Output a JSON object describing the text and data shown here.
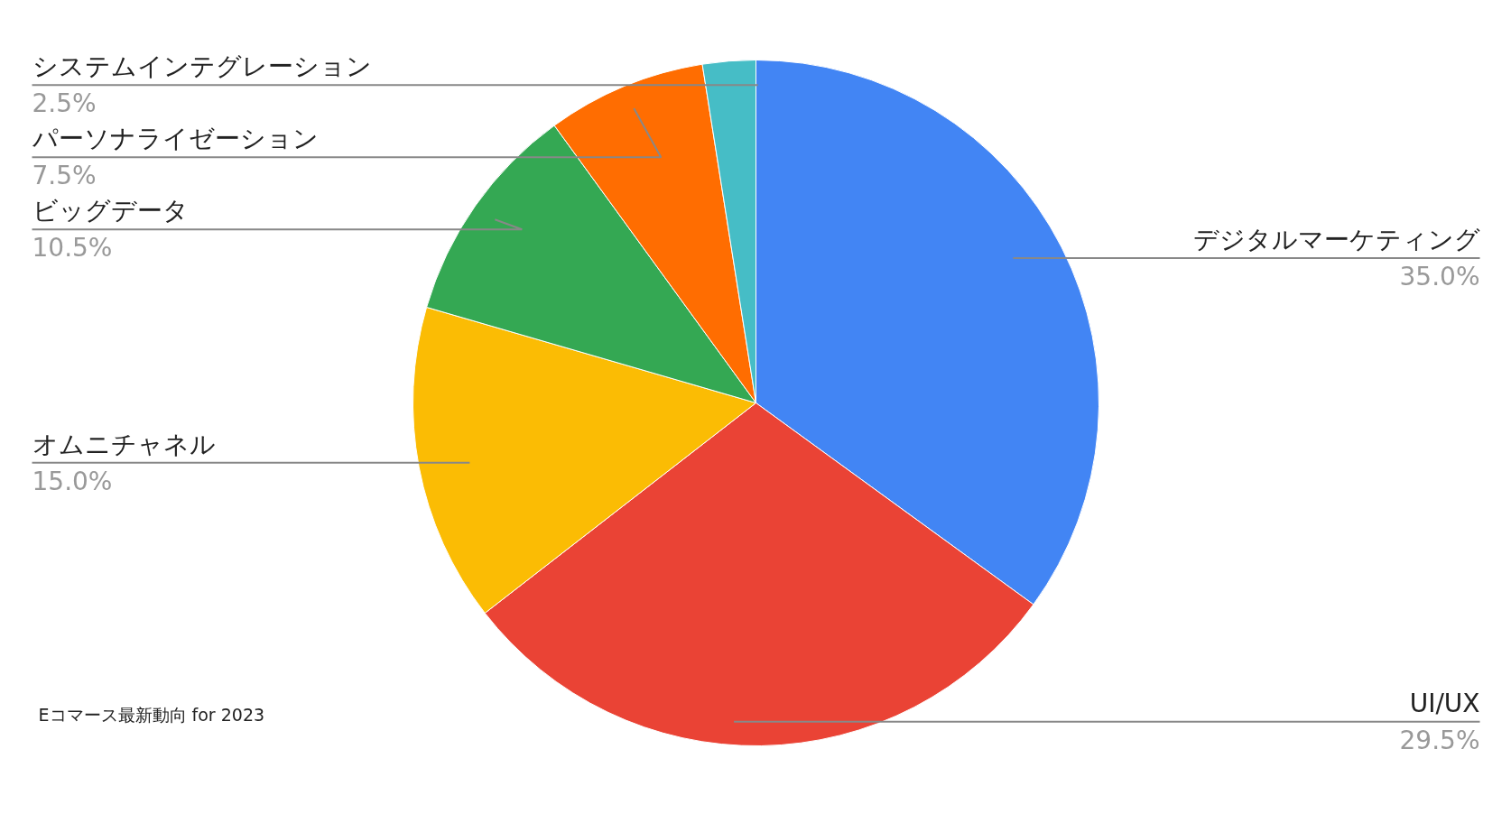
{
  "chart_data": {
    "type": "pie",
    "categories": [
      "デジタルマーケティング",
      "UI/UX",
      "オムニチャネル",
      "ビッグデータ",
      "パーソナライゼーション",
      "システムインテグレーション"
    ],
    "values": [
      35.0,
      29.5,
      15.0,
      10.5,
      7.5,
      2.5
    ],
    "colors": [
      "#4285f4",
      "#ea4335",
      "#fbbc04",
      "#34a853",
      "#ff6d01",
      "#46bdc6"
    ],
    "value_labels": [
      "35.0%",
      "29.5%",
      "15.0%",
      "10.5%",
      "7.5%",
      "2.5%"
    ],
    "annotations": [
      "Eコマース最新動向 for 2023"
    ]
  }
}
